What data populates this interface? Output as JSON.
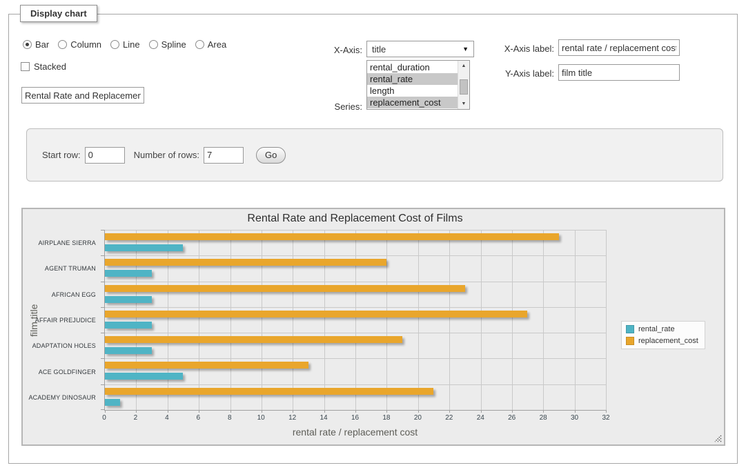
{
  "panel": {
    "legend": "Display chart"
  },
  "chart_type_options": [
    {
      "label": "Bar",
      "selected": true
    },
    {
      "label": "Column",
      "selected": false
    },
    {
      "label": "Line",
      "selected": false
    },
    {
      "label": "Spline",
      "selected": false
    },
    {
      "label": "Area",
      "selected": false
    }
  ],
  "stacked": {
    "label": "Stacked",
    "checked": false
  },
  "title_input": {
    "value": "Rental Rate and Replacement Cost of Films"
  },
  "x_axis": {
    "label": "X-Axis:",
    "selected": "title"
  },
  "series_select": {
    "label": "Series:",
    "options": [
      "rental_duration",
      "rental_rate",
      "length",
      "replacement_cost"
    ],
    "selected": [
      "rental_rate",
      "replacement_cost"
    ]
  },
  "x_axis_label": {
    "label": "X-Axis label:",
    "value": "rental rate / replacement cost"
  },
  "y_axis_label": {
    "label": "Y-Axis label:",
    "value": "film title"
  },
  "row_controls": {
    "start_row_label": "Start row:",
    "start_row_value": "0",
    "num_rows_label": "Number of rows:",
    "num_rows_value": "7",
    "go_label": "Go"
  },
  "chart_data": {
    "type": "bar",
    "title": "Rental Rate and Replacement Cost of Films",
    "categories": [
      "AIRPLANE SIERRA",
      "AGENT TRUMAN",
      "AFRICAN EGG",
      "AFFAIR PREJUDICE",
      "ADAPTATION HOLES",
      "ACE GOLDFINGER",
      "ACADEMY DINOSAUR"
    ],
    "series": [
      {
        "name": "rental_rate",
        "color": "#4FB4C5",
        "values": [
          4.99,
          2.99,
          2.99,
          2.99,
          2.99,
          4.99,
          0.99
        ]
      },
      {
        "name": "replacement_cost",
        "color": "#E9A62C",
        "values": [
          28.99,
          17.99,
          22.99,
          26.99,
          18.99,
          12.99,
          20.99
        ]
      }
    ],
    "bar_row_order": [
      "replacement_cost",
      "rental_rate"
    ],
    "xlabel": "rental rate / replacement cost",
    "ylabel": "film title",
    "xlim": [
      0,
      32
    ],
    "x_ticks": [
      0,
      2,
      4,
      6,
      8,
      10,
      12,
      14,
      16,
      18,
      20,
      22,
      24,
      26,
      28,
      30,
      32
    ],
    "grid": true,
    "legend_position": "right"
  }
}
